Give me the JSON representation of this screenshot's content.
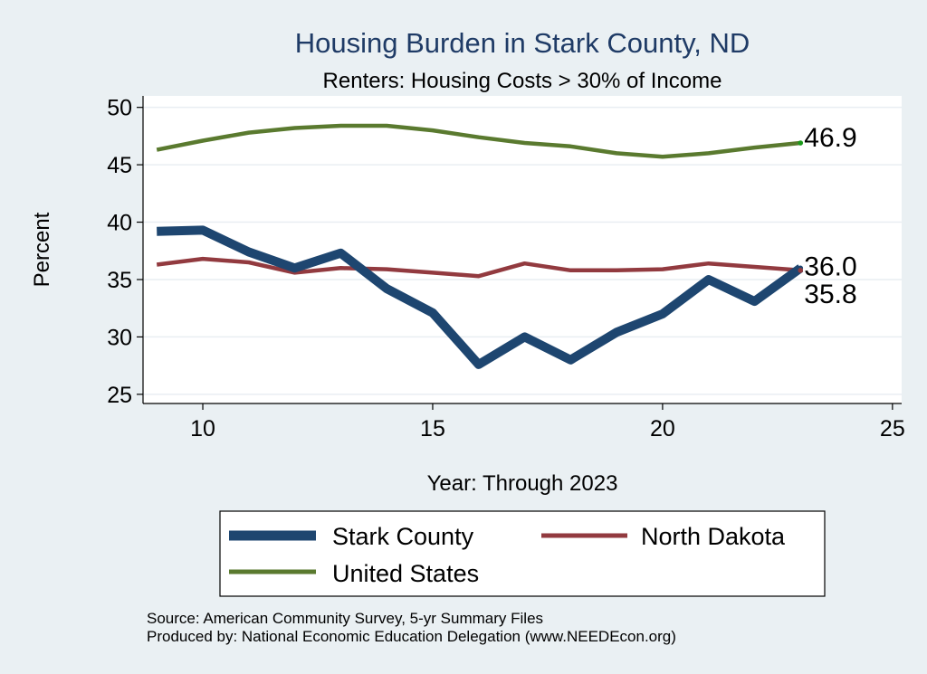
{
  "chart_data": {
    "type": "line",
    "title": "Housing Burden in Stark County, ND",
    "subtitle": "Renters: Housing Costs > 30% of Income",
    "xlabel": "Year: Through 2023",
    "ylabel": "Percent",
    "xlim": [
      8.7,
      25.2
    ],
    "ylim": [
      24.2,
      51.0
    ],
    "xticks": [
      10,
      15,
      20,
      25
    ],
    "yticks": [
      25,
      30,
      35,
      40,
      45,
      50
    ],
    "grid": true,
    "series": [
      {
        "name": "Stark County",
        "color": "#1e4670",
        "x": [
          9,
          10,
          11,
          12,
          13,
          14,
          15,
          16,
          17,
          18,
          19,
          20,
          21,
          22,
          23
        ],
        "values": [
          39.2,
          39.3,
          37.4,
          36.0,
          37.3,
          34.2,
          32.1,
          27.6,
          30.0,
          28.0,
          30.4,
          32.0,
          35.0,
          33.1,
          36.0
        ],
        "end_label": "36.0"
      },
      {
        "name": "North Dakota",
        "color": "#923a3f",
        "x": [
          9,
          10,
          11,
          12,
          13,
          14,
          15,
          16,
          17,
          18,
          19,
          20,
          21,
          22,
          23
        ],
        "values": [
          36.3,
          36.8,
          36.5,
          35.6,
          36.0,
          35.9,
          35.6,
          35.3,
          36.4,
          35.8,
          35.8,
          35.9,
          36.4,
          36.1,
          35.8
        ],
        "end_label": "35.8"
      },
      {
        "name": "United States",
        "color": "#5a7a2f",
        "x": [
          9,
          10,
          11,
          12,
          13,
          14,
          15,
          16,
          17,
          18,
          19,
          20,
          21,
          22,
          23
        ],
        "values": [
          46.3,
          47.1,
          47.8,
          48.2,
          48.4,
          48.4,
          48.0,
          47.4,
          46.9,
          46.6,
          46.0,
          45.7,
          46.0,
          46.5,
          46.9
        ],
        "end_label": "46.9"
      }
    ],
    "legend": {
      "position": "bottom",
      "entries": [
        "Stark County",
        "North Dakota",
        "United States"
      ]
    },
    "notes": [
      "Source: American Community Survey, 5-yr Summary Files",
      "Produced by: National Economic Education Delegation (www.NEEDEcon.org)"
    ]
  },
  "colors": {
    "background": "#eaf0f3",
    "plot_background": "#ffffff",
    "title": "#1f3b66",
    "grid": "#e9eef2"
  }
}
